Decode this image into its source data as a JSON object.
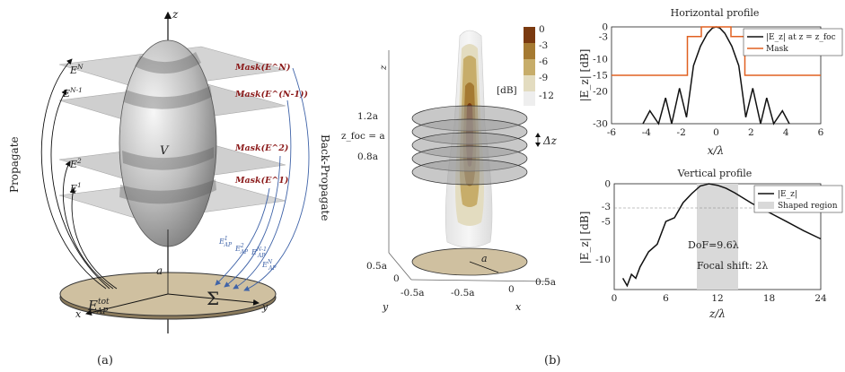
{
  "panel_a": {
    "caption": "(a)",
    "axis_z": "z",
    "axis_x": "x",
    "axis_y": "y",
    "label_propagate": "Propagate",
    "label_back_propagate": "Back-Propagate",
    "label_volume": "V",
    "label_radius": "a",
    "label_sigma": "Σ",
    "label_aperture_field": "E",
    "label_aperture_sup": "tot",
    "label_aperture_sub": "AP",
    "planes_left": [
      {
        "base": "E",
        "sup": "N"
      },
      {
        "base": "E",
        "sup": "N-1"
      },
      {
        "base": "E",
        "sup": "2"
      },
      {
        "base": "E",
        "sup": "1"
      }
    ],
    "planes_right": [
      "Mask(E^N)",
      "Mask(E^(N-1))",
      "Mask(E^2)",
      "Mask(E^1)"
    ],
    "ap_fields": [
      {
        "base": "E",
        "sup": "1",
        "sub": "AP"
      },
      {
        "base": "E",
        "sup": "2",
        "sub": "AP"
      },
      {
        "base": "E",
        "sup": "N-1",
        "sub": "AP"
      },
      {
        "base": "E",
        "sup": "N",
        "sub": "AP"
      }
    ]
  },
  "panel_b": {
    "caption": "(b)",
    "colorbar": {
      "ticks": [
        "0",
        "-3",
        "-6",
        "-9",
        "-12"
      ],
      "unit": "[dB]",
      "colors": [
        "#7a3a10",
        "#a57a32",
        "#c7ad6a",
        "#e3dcc0",
        "#eeeeee"
      ]
    },
    "z_axis_label": "z",
    "z_ticks": [
      "1.2a",
      "z_foc = a",
      "0.8a"
    ],
    "delta_z": "Δz",
    "y_axis": {
      "label": "y",
      "ticks": [
        "0.5a",
        "0",
        "-0.5a"
      ]
    },
    "x_axis": {
      "label": "x",
      "ticks": [
        "-0.5a",
        "0",
        "0.5a"
      ]
    },
    "radius_label": "a"
  },
  "charts": [
    {
      "type": "line",
      "title": "Horizontal profile",
      "xlabel": "x/λ",
      "ylabel": "|E_z| [dB]",
      "xlim": [
        -6,
        6
      ],
      "ylim": [
        -30,
        0
      ],
      "xticks": [
        "-6",
        "-4",
        "-2",
        "0",
        "2",
        "4",
        "6"
      ],
      "yticks": [
        "0",
        "-3",
        "-10",
        "-15",
        "-20",
        "-30"
      ],
      "legend_position": "top-right",
      "series": [
        {
          "name": "|E_z| at z = z_foc",
          "color": "#111111",
          "x": [
            -4.2,
            -3.8,
            -3.3,
            -2.9,
            -2.55,
            -2.1,
            -1.7,
            -1.3,
            -0.9,
            -0.5,
            -0.2,
            0,
            0.2,
            0.5,
            0.9,
            1.3,
            1.7,
            2.1,
            2.55,
            2.9,
            3.3,
            3.8,
            4.2
          ],
          "y": [
            -30,
            -26,
            -30,
            -22,
            -30,
            -19,
            -28,
            -12,
            -6,
            -2,
            -0.3,
            0,
            -0.3,
            -2,
            -6,
            -12,
            -28,
            -19,
            -30,
            -22,
            -30,
            -26,
            -30
          ]
        },
        {
          "name": "Mask",
          "color": "#e06020",
          "x": [
            -6,
            -1.65,
            -1.65,
            -0.85,
            -0.85,
            0.85,
            0.85,
            1.65,
            1.65,
            6
          ],
          "y": [
            -15,
            -15,
            -3,
            -3,
            0,
            0,
            -3,
            -3,
            -15,
            -15
          ]
        }
      ]
    },
    {
      "type": "line",
      "title": "Vertical profile",
      "xlabel": "z/λ",
      "ylabel": "|E_z| [dB]",
      "xlim": [
        0,
        24
      ],
      "ylim": [
        -14,
        0
      ],
      "xticks": [
        "0",
        "6",
        "12",
        "18",
        "24"
      ],
      "yticks": [
        "0",
        "-3",
        "-5",
        "-10"
      ],
      "legend_position": "top-right",
      "shaded_region": {
        "name": "Shaped region",
        "x": [
          9.6,
          14.4
        ],
        "color": "#d9d9d9"
      },
      "annotations": [
        "DoF=9.6λ",
        "Focal shift:  2λ"
      ],
      "series": [
        {
          "name": "|E_z|",
          "color": "#111111",
          "x": [
            1,
            1.5,
            2,
            2.5,
            3,
            4,
            5,
            6,
            7,
            8,
            9,
            10,
            11,
            12,
            13,
            14,
            16,
            18,
            20,
            22,
            24
          ],
          "y": [
            -12.5,
            -13.5,
            -12,
            -12.5,
            -11,
            -9,
            -8,
            -5,
            -4.5,
            -2.5,
            -1.3,
            -0.3,
            0,
            -0.2,
            -0.6,
            -1.2,
            -2.6,
            -3.8,
            -5,
            -6.2,
            -7.3
          ]
        }
      ]
    }
  ]
}
